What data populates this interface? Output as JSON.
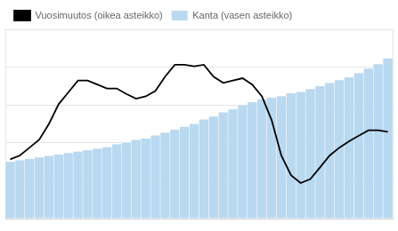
{
  "chart_data": {
    "type": "bar",
    "categories": [
      null,
      null,
      null,
      null,
      null,
      null,
      null,
      null,
      null,
      null,
      null,
      null,
      null,
      null,
      null,
      null,
      null,
      null,
      null,
      null,
      null,
      null,
      null,
      null,
      null,
      null,
      null,
      null,
      null,
      null,
      null,
      null,
      null,
      null,
      null,
      null,
      null,
      null,
      null,
      null
    ],
    "series": [
      {
        "name": "Kanta (vasen asteikko)",
        "type": "bar",
        "color": "#b8d9f0",
        "values": [
          39,
          40,
          41,
          42,
          43,
          44,
          45,
          46,
          47,
          48,
          49,
          51,
          52,
          54,
          55,
          57,
          59,
          61,
          63,
          65,
          68,
          70,
          73,
          75,
          78,
          80,
          82,
          83,
          84,
          86,
          87,
          89,
          91,
          93,
          95,
          97,
          100,
          103,
          106,
          110
        ]
      },
      {
        "name": "Vuosimuutos (oikea asteikko)",
        "type": "line",
        "color": "#000000",
        "axis": "y2",
        "values": [
          3.5,
          4.0,
          5.0,
          6.0,
          8.0,
          10.5,
          12.0,
          13.5,
          13.5,
          13.0,
          12.5,
          12.5,
          11.8,
          11.2,
          11.5,
          12.2,
          14.0,
          15.5,
          15.5,
          15.3,
          15.5,
          14.0,
          13.2,
          13.5,
          13.8,
          13.0,
          11.5,
          8.5,
          4.0,
          1.5,
          0.5,
          1.0,
          2.5,
          4.0,
          5.0,
          5.8,
          6.5,
          7.2,
          7.2,
          7.0
        ]
      }
    ],
    "ylim": [
      0,
      130
    ],
    "yticks": [
      0,
      26,
      52,
      78,
      104,
      130
    ],
    "y2lim": [
      -4,
      20
    ],
    "grid": true,
    "legend": "upper left",
    "tick_labels": false
  }
}
